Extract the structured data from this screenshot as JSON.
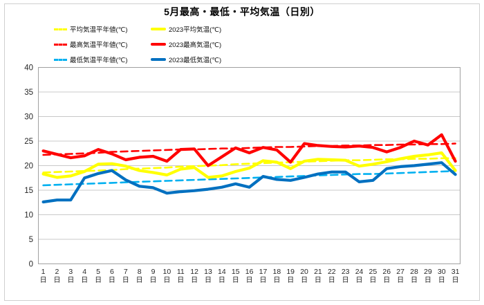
{
  "title": "5月最高・最低・平均気温（日別）",
  "axis": {
    "day_suffix": "日",
    "yticks": [
      0,
      5,
      10,
      15,
      20,
      25,
      30,
      35,
      40
    ]
  },
  "chart_data": {
    "type": "line",
    "title": "5月最高・最低・平均気温（日別）",
    "xlabel": "",
    "ylabel": "",
    "ylim": [
      0,
      40
    ],
    "ytick_step": 5,
    "grid": true,
    "legend_position": "top-left",
    "x": [
      1,
      2,
      3,
      4,
      5,
      6,
      7,
      8,
      9,
      10,
      11,
      12,
      13,
      14,
      15,
      16,
      17,
      18,
      19,
      20,
      21,
      22,
      23,
      24,
      25,
      26,
      27,
      28,
      29,
      30,
      31
    ],
    "x_unit": "日",
    "series": [
      {
        "name": "平均気温平年値(℃)",
        "color": "#ffff00",
        "dashed": true,
        "values": [
          18.6,
          18.7,
          18.8,
          18.9,
          19.0,
          19.1,
          19.3,
          19.4,
          19.5,
          19.6,
          19.8,
          19.9,
          20.0,
          20.1,
          20.3,
          20.4,
          20.5,
          20.6,
          20.7,
          20.8,
          20.9,
          21.0,
          21.1,
          21.1,
          21.2,
          21.3,
          21.3,
          21.4,
          21.4,
          21.5,
          21.5
        ]
      },
      {
        "name": "2023平均気温(℃)",
        "color": "#ffff00",
        "dashed": false,
        "values": [
          18.3,
          17.6,
          17.9,
          18.8,
          20.3,
          20.4,
          19.9,
          19.0,
          18.6,
          18.1,
          19.3,
          19.6,
          17.6,
          17.9,
          18.8,
          19.5,
          21.0,
          20.7,
          19.4,
          20.9,
          21.3,
          21.2,
          21.1,
          19.9,
          20.3,
          20.8,
          21.4,
          21.9,
          22.2,
          22.6,
          19.0
        ]
      },
      {
        "name": "最高気温平年値(℃)",
        "color": "#ff0000",
        "dashed": true,
        "values": [
          22.2,
          22.3,
          22.4,
          22.5,
          22.6,
          22.8,
          22.9,
          23.0,
          23.1,
          23.2,
          23.3,
          23.3,
          23.4,
          23.5,
          23.5,
          23.6,
          23.7,
          23.8,
          23.8,
          23.9,
          24.0,
          24.0,
          24.1,
          24.1,
          24.2,
          24.2,
          24.3,
          24.3,
          24.4,
          24.4,
          24.5
        ]
      },
      {
        "name": "2023最高気温(℃)",
        "color": "#ff0000",
        "dashed": false,
        "values": [
          23.0,
          22.3,
          21.6,
          22.0,
          23.3,
          22.4,
          21.2,
          21.7,
          21.9,
          20.9,
          23.3,
          23.4,
          20.0,
          21.8,
          23.6,
          22.6,
          23.7,
          23.2,
          20.7,
          24.5,
          24.1,
          23.9,
          23.8,
          24.0,
          23.7,
          22.8,
          23.7,
          25.0,
          24.2,
          26.3,
          20.9
        ]
      },
      {
        "name": "最低気温平年値(℃)",
        "color": "#00b0f0",
        "dashed": true,
        "values": [
          16.0,
          16.1,
          16.2,
          16.3,
          16.4,
          16.5,
          16.6,
          16.7,
          16.8,
          16.9,
          17.0,
          17.1,
          17.2,
          17.3,
          17.4,
          17.5,
          17.6,
          17.7,
          17.8,
          17.9,
          18.0,
          18.1,
          18.2,
          18.3,
          18.3,
          18.4,
          18.5,
          18.6,
          18.7,
          18.8,
          18.9
        ]
      },
      {
        "name": "2023最低気温(℃)",
        "color": "#0070c0",
        "dashed": false,
        "values": [
          12.6,
          13.0,
          13.0,
          17.5,
          18.4,
          19.0,
          17.1,
          15.8,
          15.5,
          14.4,
          14.7,
          14.9,
          15.2,
          15.6,
          16.3,
          15.6,
          17.8,
          17.2,
          17.0,
          17.6,
          18.3,
          18.7,
          18.7,
          16.7,
          17.0,
          19.4,
          19.8,
          20.0,
          20.3,
          20.6,
          18.2
        ]
      }
    ]
  }
}
